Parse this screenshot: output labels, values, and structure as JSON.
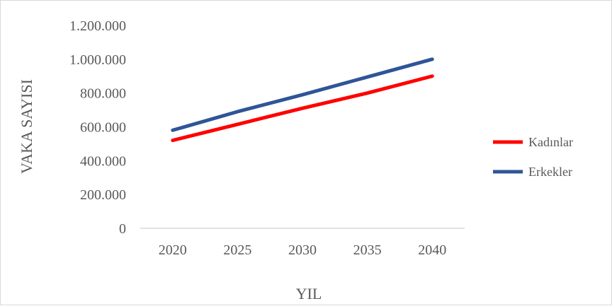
{
  "chart_data": {
    "type": "line",
    "title": "",
    "xlabel": "YIL",
    "ylabel": "VAKA SAYISI",
    "x": [
      2020,
      2025,
      2030,
      2035,
      2040
    ],
    "x_tick_labels": [
      "2020",
      "2025",
      "2030",
      "2035",
      "2040"
    ],
    "y_ticks": [
      0,
      200000,
      400000,
      600000,
      800000,
      1000000,
      1200000
    ],
    "y_tick_labels": [
      "0",
      "200.000",
      "400.000",
      "600.000",
      "800.000",
      "1.000.000",
      "1.200.000"
    ],
    "ylim": [
      0,
      1200000
    ],
    "grid": false,
    "legend": "right",
    "series": [
      {
        "name": "Kadınlar",
        "color": "#ff0000",
        "values": [
          520000,
          615000,
          710000,
          800000,
          900000
        ]
      },
      {
        "name": "Erkekler",
        "color": "#2f5597",
        "values": [
          580000,
          690000,
          790000,
          895000,
          1000000
        ]
      }
    ]
  }
}
